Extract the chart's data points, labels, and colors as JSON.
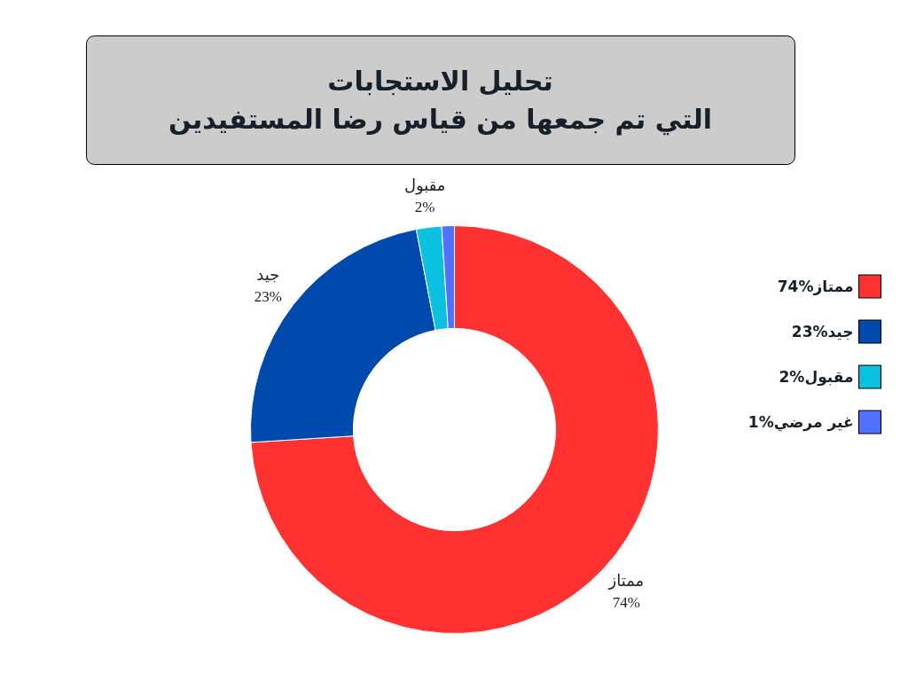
{
  "chart_data": {
    "type": "donut",
    "title": "تحليل الاستجابات\nالتي تم جمعها من قياس رضا المستفيدين",
    "categories": [
      "ممتاز",
      "جيد",
      "مقبول",
      "غير مرضي"
    ],
    "values": [
      74,
      23,
      2,
      1
    ],
    "value_labels": [
      "74%",
      "23%",
      "2%",
      "1%"
    ],
    "colors": [
      "#ff3131",
      "#004aad",
      "#0cc0df",
      "#5271ff"
    ],
    "legend": "right"
  }
}
